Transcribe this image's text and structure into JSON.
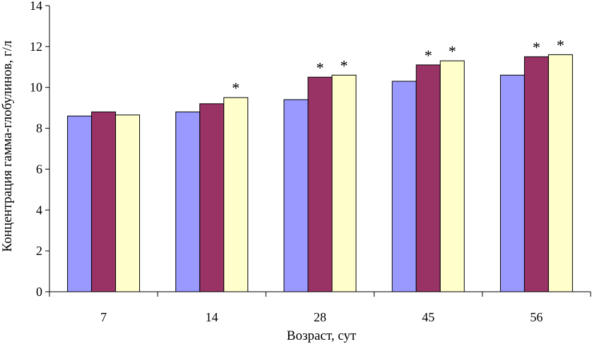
{
  "chart_data": {
    "type": "bar",
    "title": "",
    "xlabel": "Возраст, сут",
    "ylabel": "Концентрация гамма-глобулинов, г/л",
    "categories": [
      "7",
      "14",
      "28",
      "45",
      "56"
    ],
    "ylim": [
      0,
      14
    ],
    "yticks": [
      0,
      2,
      4,
      6,
      8,
      10,
      12,
      14
    ],
    "grid": false,
    "legend": "none",
    "series": [
      {
        "values": [
          8.6,
          8.8,
          9.4,
          10.3,
          10.6
        ],
        "color": "#9999ff",
        "significant": [
          false,
          false,
          false,
          false,
          false
        ]
      },
      {
        "values": [
          8.8,
          9.2,
          10.5,
          11.1,
          11.5
        ],
        "color": "#993366",
        "significant": [
          false,
          false,
          true,
          true,
          true
        ]
      },
      {
        "values": [
          8.65,
          9.5,
          10.6,
          11.3,
          11.6
        ],
        "color": "#ffffcc",
        "significant": [
          false,
          true,
          true,
          true,
          true
        ]
      }
    ],
    "significance_marker": "*"
  }
}
